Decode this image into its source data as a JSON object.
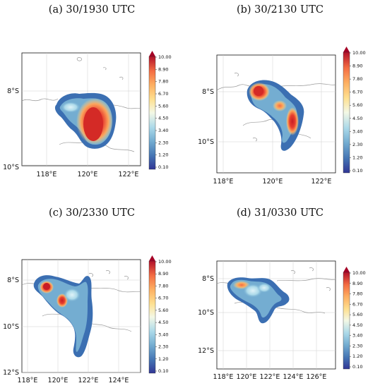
{
  "colorbar_ticks": [
    "10.00",
    "8.90",
    "7.80",
    "6.70",
    "5.60",
    "4.50",
    "3.40",
    "2.30",
    "1.20",
    "0.10"
  ],
  "colorbar_colors": [
    "#313695",
    "#3a74b2",
    "#74add1",
    "#abd9e9",
    "#e0f3f8",
    "#fee090",
    "#fdae61",
    "#f46d43",
    "#d73027",
    "#a50026"
  ],
  "panels": [
    {
      "title": "(a) 30/1930 UTC",
      "lon_ticks": [
        "118°E",
        "120°E",
        "122°E"
      ],
      "lat_ticks": [
        "8°S",
        "10°S"
      ]
    },
    {
      "title": "(b) 30/2130 UTC",
      "lon_ticks": [
        "118°E",
        "120°E",
        "122°E"
      ],
      "lat_ticks": [
        "8°S",
        "10°S"
      ]
    },
    {
      "title": "(c) 30/2330 UTC",
      "lon_ticks": [
        "118°E",
        "120°E",
        "122°E",
        "124°E"
      ],
      "lat_ticks": [
        "8°S",
        "10°S",
        "12°S"
      ]
    },
    {
      "title": "(d) 31/0330 UTC",
      "lon_ticks": [
        "118°E",
        "120°E",
        "122°E",
        "124°E",
        "126°E"
      ],
      "lat_ticks": [
        "8°S",
        "10°S",
        "12°S"
      ]
    }
  ]
}
